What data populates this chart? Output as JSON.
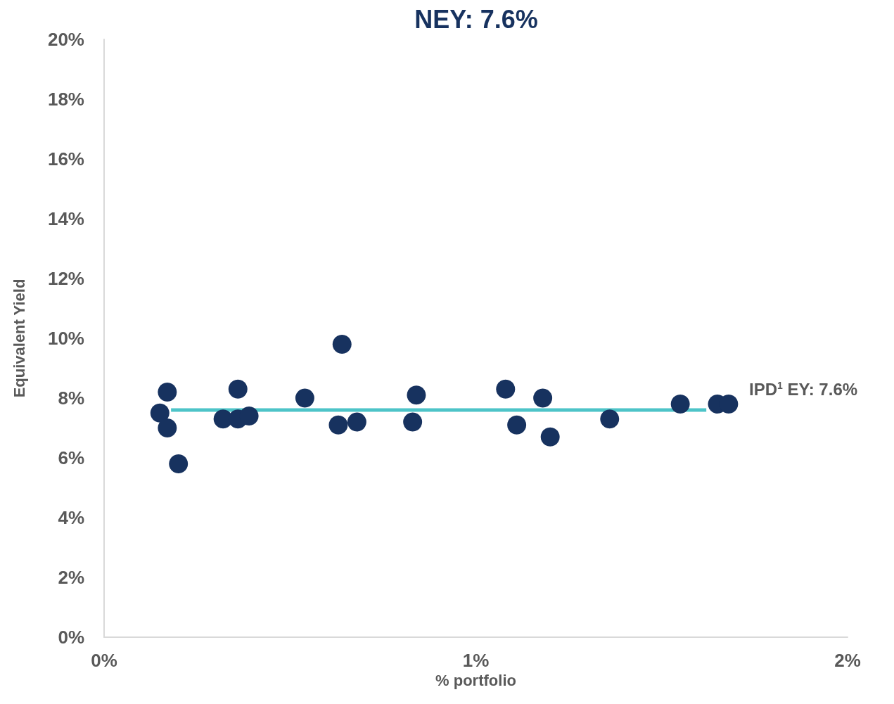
{
  "chart_data": {
    "type": "scatter",
    "title": "NEY: 7.6%",
    "xlabel": "% portfolio",
    "ylabel": "Equivalent Yield",
    "series": [
      {
        "type": "scatter",
        "color": "#17325f",
        "x": [
          0.15,
          0.17,
          0.17,
          0.2,
          0.32,
          0.36,
          0.36,
          0.39,
          0.54,
          0.63,
          0.64,
          0.68,
          0.83,
          0.84,
          1.08,
          1.11,
          1.18,
          1.2,
          1.36,
          1.55,
          1.65,
          1.68
        ],
        "values": [
          7.5,
          8.2,
          7.0,
          5.8,
          7.3,
          7.3,
          8.3,
          7.4,
          8.0,
          7.1,
          9.8,
          7.2,
          7.2,
          8.1,
          8.3,
          7.1,
          8.0,
          6.7,
          7.3,
          7.8,
          7.8,
          7.8
        ]
      },
      {
        "type": "line",
        "color": "#4dc4c8",
        "marker": "none",
        "x": [
          0.18,
          1.62
        ],
        "values": [
          7.6,
          7.6
        ]
      }
    ],
    "annotations": [
      {
        "text": "IPD$^{1}$ EY: 7.6%",
        "x": 1.65,
        "y": 7.6
      }
    ],
    "xlim": [
      0,
      2
    ],
    "xticks": [
      {
        "value": 0,
        "label": "0%"
      },
      {
        "value": 1,
        "label": "1%"
      },
      {
        "value": 2,
        "label": "2%"
      }
    ],
    "ylim": [
      0,
      20
    ],
    "yticks": [
      {
        "value": 0,
        "label": "0%"
      },
      {
        "value": 2,
        "label": "2%"
      },
      {
        "value": 4,
        "label": "4%"
      },
      {
        "value": 6,
        "label": "6%"
      },
      {
        "value": 8,
        "label": "8%"
      },
      {
        "value": 10,
        "label": "10%"
      },
      {
        "value": 12,
        "label": "12%"
      },
      {
        "value": 14,
        "label": "14%"
      },
      {
        "value": 16,
        "label": "16%"
      },
      {
        "value": 18,
        "label": "18%"
      },
      {
        "value": 20,
        "label": "20%"
      }
    ],
    "grid": false,
    "marker": "circle"
  }
}
